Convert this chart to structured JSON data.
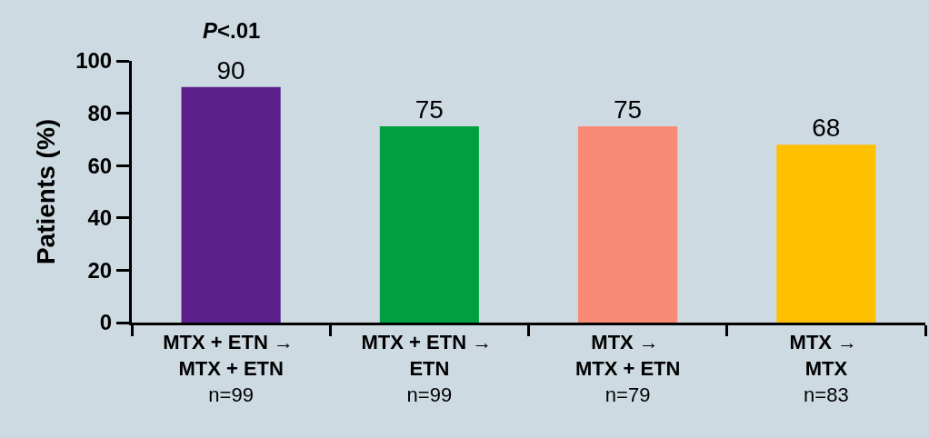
{
  "chart_data": {
    "type": "bar",
    "ylabel": "Patients (%)",
    "categories": [
      "MTX + ETN → \nMTX + ETN\nn=99",
      "MTX + ETN → \nETN\nn=99",
      "MTX → \nMTX + ETN\nn=79",
      "MTX → \nMTX\nn=83"
    ],
    "values": [
      90,
      75,
      75,
      68
    ],
    "colors": [
      "#5b1f8c",
      "#00a040",
      "#f98a75",
      "#ffc000"
    ],
    "ylim": [
      0,
      100
    ],
    "yticks": [
      0,
      20,
      40,
      60,
      80,
      100
    ],
    "data_labels": true,
    "grid": false,
    "legend": false,
    "annotations": [
      {
        "text": "P<.01",
        "x": "MTX + ETN → \nMTX + ETN\nn=99",
        "y": 90
      }
    ]
  }
}
